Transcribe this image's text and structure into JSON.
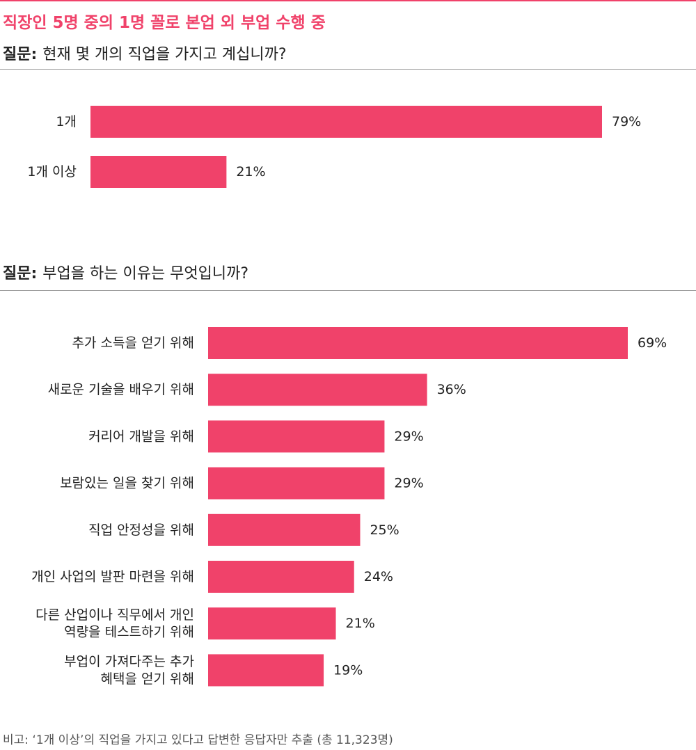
{
  "title": "직장인 5명 중의 1명 꼴로 본업 외 부업 수행 중",
  "question_prefix": "질문:",
  "colors": {
    "accent": "#f0426a",
    "bar": "#f0426a",
    "text": "#222222",
    "rule": "#9a9a9a"
  },
  "chart_data": [
    {
      "type": "bar",
      "orientation": "horizontal",
      "title": "현재 몇 개의 직업을 가지고 계십니까?",
      "categories": [
        "1개",
        "1개 이상"
      ],
      "values": [
        79,
        21
      ],
      "value_labels": [
        "79%",
        "21%"
      ],
      "unit": "%",
      "grid": false
    },
    {
      "type": "bar",
      "orientation": "horizontal",
      "title": "부업을 하는 이유는 무엇입니까?",
      "categories": [
        "추가 소득을 얻기 위해",
        "새로운 기술을 배우기 위해",
        "커리어 개발을 위해",
        "보람있는 일을 찾기 위해",
        "직업 안정성을 위해",
        "개인 사업의 발판 마련을 위해",
        "다른 산업이나 직무에서 개인\n역량을 테스트하기 위해",
        "부업이 가져다주는 추가\n혜택을 얻기 위해"
      ],
      "values": [
        69,
        36,
        29,
        29,
        25,
        24,
        21,
        19
      ],
      "value_labels": [
        "69%",
        "36%",
        "29%",
        "29%",
        "25%",
        "24%",
        "21%",
        "19%"
      ],
      "unit": "%",
      "grid": false
    }
  ],
  "footnote": "비고: ‘1개 이상’의 직업을 가지고 있다고 답변한 응답자만 추출 (총 11,323명)"
}
